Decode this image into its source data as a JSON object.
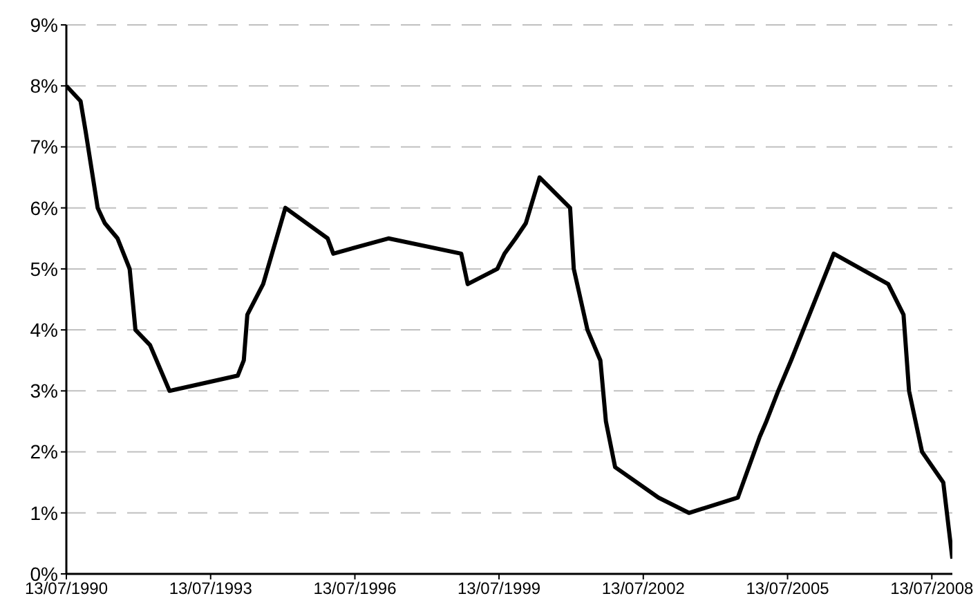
{
  "chart_data": {
    "type": "line",
    "x": [
      "1990-07-13",
      "1990-10-29",
      "1990-12-07",
      "1991-03-08",
      "1991-05-01",
      "1991-08-06",
      "1991-11-06",
      "1991-12-20",
      "1992-04-09",
      "1992-09-04",
      "1994-02-04",
      "1994-03-22",
      "1994-04-18",
      "1994-08-16",
      "1995-02-01",
      "1995-12-19",
      "1996-01-31",
      "1997-03-25",
      "1998-09-29",
      "1998-11-17",
      "1999-06-30",
      "1999-08-24",
      "1999-11-16",
      "2000-02-02",
      "2000-05-16",
      "2001-01-03",
      "2001-01-31",
      "2001-05-15",
      "2001-08-21",
      "2001-10-02",
      "2001-12-11",
      "2002-11-06",
      "2003-06-25",
      "2004-06-30",
      "2004-12-14",
      "2005-02-02",
      "2005-05-03",
      "2005-08-09",
      "2006-06-29",
      "2007-08-17",
      "2007-12-11",
      "2008-01-22",
      "2008-04-30",
      "2008-10-08",
      "2008-12-16"
    ],
    "series": [
      {
        "color": "#000000",
        "values": [
          8.0,
          7.75,
          7.25,
          6.0,
          5.75,
          5.5,
          5.0,
          4.0,
          3.75,
          3.0,
          3.25,
          3.5,
          4.25,
          4.75,
          6.0,
          5.5,
          5.25,
          5.5,
          5.25,
          4.75,
          5.0,
          5.25,
          5.5,
          5.75,
          6.5,
          6.0,
          5.0,
          4.0,
          3.5,
          2.5,
          1.75,
          1.25,
          1.0,
          1.25,
          2.25,
          2.5,
          3.0,
          3.5,
          5.25,
          4.75,
          4.25,
          3.0,
          2.0,
          1.5,
          0.25
        ]
      }
    ],
    "xlim": [
      "1990-07-13",
      "2008-12-16"
    ],
    "xticks": [
      {
        "value": "1990-07-13",
        "label": "13/07/1990"
      },
      {
        "value": "1993-07-13",
        "label": "13/07/1993"
      },
      {
        "value": "1996-07-13",
        "label": "13/07/1996"
      },
      {
        "value": "1999-07-13",
        "label": "13/07/1999"
      },
      {
        "value": "2002-07-13",
        "label": "13/07/2002"
      },
      {
        "value": "2005-07-13",
        "label": "13/07/2005"
      },
      {
        "value": "2008-07-13",
        "label": "13/07/2008"
      }
    ],
    "ylim": [
      0,
      9
    ],
    "yticks": [
      {
        "value": 0,
        "label": "0%"
      },
      {
        "value": 1,
        "label": "1%"
      },
      {
        "value": 2,
        "label": "2%"
      },
      {
        "value": 3,
        "label": "3%"
      },
      {
        "value": 4,
        "label": "4%"
      },
      {
        "value": 5,
        "label": "5%"
      },
      {
        "value": 6,
        "label": "6%"
      },
      {
        "value": 7,
        "label": "7%"
      },
      {
        "value": 8,
        "label": "8%"
      },
      {
        "value": 9,
        "label": "9%"
      }
    ],
    "grid": "y",
    "legend": false,
    "marker": "none",
    "line_style": "solid"
  }
}
